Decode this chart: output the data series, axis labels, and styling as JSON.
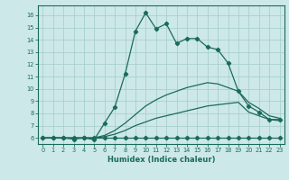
{
  "xlabel": "Humidex (Indice chaleur)",
  "bg_color": "#cde8e8",
  "grid_color": "#aacfcf",
  "line_color": "#1a6b5a",
  "xlim": [
    -0.5,
    23.5
  ],
  "ylim": [
    5.5,
    16.8
  ],
  "xticks": [
    0,
    1,
    2,
    3,
    4,
    5,
    6,
    7,
    8,
    9,
    10,
    11,
    12,
    13,
    14,
    15,
    16,
    17,
    18,
    19,
    20,
    21,
    22,
    23
  ],
  "yticks": [
    6,
    7,
    8,
    9,
    10,
    11,
    12,
    13,
    14,
    15,
    16
  ],
  "series": [
    {
      "x": [
        0,
        1,
        2,
        3,
        4,
        5,
        6,
        7,
        8,
        9,
        10,
        11,
        12,
        13,
        14,
        15,
        16,
        17,
        18,
        19,
        20,
        21,
        22,
        23
      ],
      "y": [
        6,
        6,
        6,
        6,
        6,
        6,
        6,
        6,
        6,
        6,
        6,
        6,
        6,
        6,
        6,
        6,
        6,
        6,
        6,
        6,
        6,
        6,
        6,
        6
      ],
      "marker": true
    },
    {
      "x": [
        0,
        1,
        2,
        3,
        4,
        5,
        6,
        7,
        8,
        9,
        10,
        11,
        12,
        13,
        14,
        15,
        16,
        17,
        18,
        19,
        20,
        21,
        22,
        23
      ],
      "y": [
        6,
        6,
        6,
        6,
        6,
        6,
        6.1,
        6.3,
        6.6,
        7.0,
        7.3,
        7.6,
        7.8,
        8.0,
        8.2,
        8.4,
        8.6,
        8.7,
        8.8,
        8.9,
        8.1,
        7.8,
        7.5,
        7.4
      ],
      "marker": false
    },
    {
      "x": [
        0,
        1,
        2,
        3,
        4,
        5,
        6,
        7,
        8,
        9,
        10,
        11,
        12,
        13,
        14,
        15,
        16,
        17,
        18,
        19,
        20,
        21,
        22,
        23
      ],
      "y": [
        6,
        6,
        6,
        6,
        6,
        6,
        6.2,
        6.6,
        7.2,
        7.9,
        8.6,
        9.1,
        9.5,
        9.8,
        10.1,
        10.3,
        10.5,
        10.4,
        10.1,
        9.8,
        8.9,
        8.4,
        7.8,
        7.6
      ],
      "marker": false
    },
    {
      "x": [
        0,
        1,
        2,
        3,
        4,
        5,
        6,
        7,
        8,
        9,
        10,
        11,
        12,
        13,
        14,
        15,
        16,
        17,
        18,
        19,
        20,
        21,
        22,
        23
      ],
      "y": [
        6,
        6,
        6,
        5.9,
        6.0,
        5.85,
        7.2,
        8.5,
        11.2,
        14.7,
        16.2,
        14.9,
        15.3,
        13.7,
        14.1,
        14.1,
        13.4,
        13.2,
        12.1,
        9.8,
        8.6,
        8.1,
        7.5,
        7.5
      ],
      "marker": true
    }
  ],
  "xlabel_fontsize": 6.0,
  "tick_fontsize": 4.8,
  "marker_size": 2.2,
  "linewidth": 0.9
}
